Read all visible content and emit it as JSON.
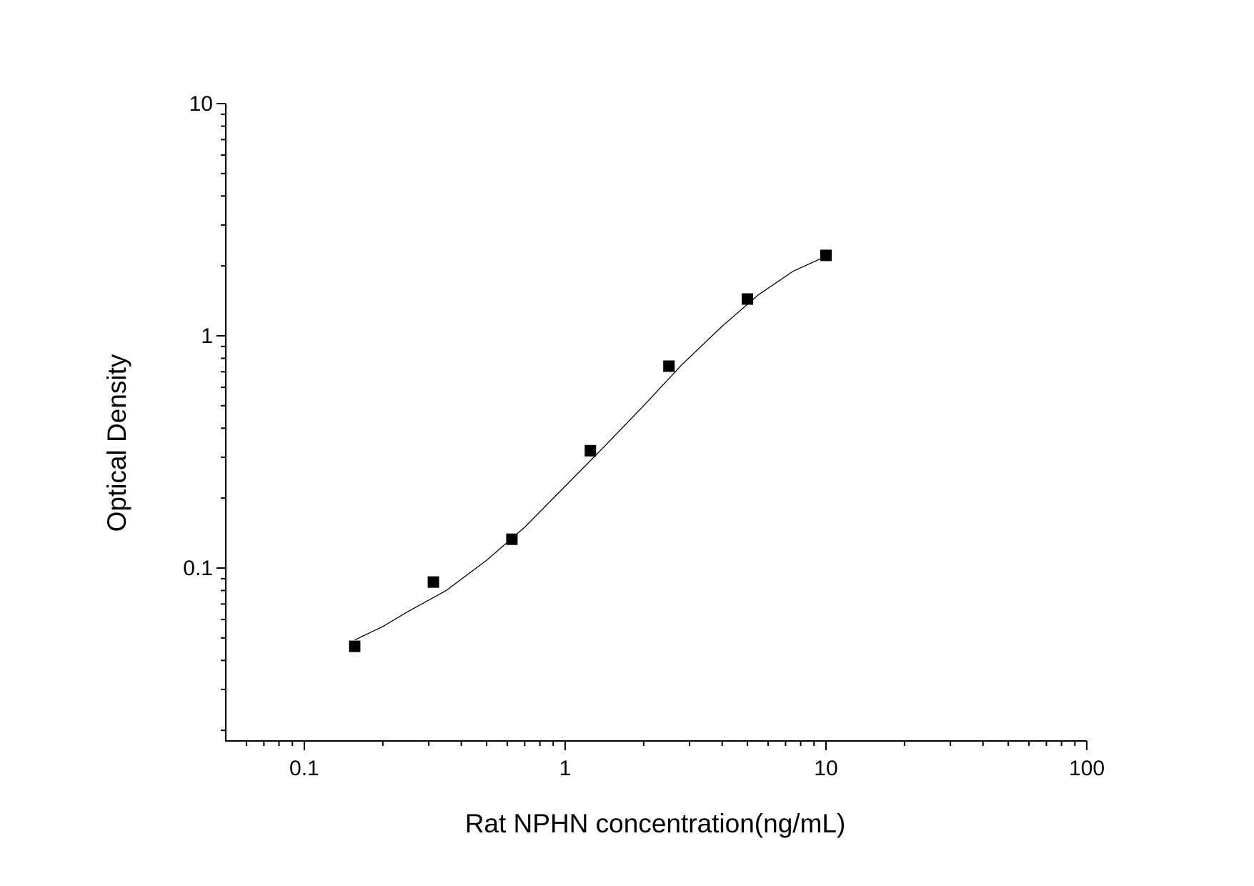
{
  "chart_data": {
    "type": "scatter",
    "xlabel": "Rat NPHN concentration(ng/mL)",
    "ylabel": "Optical Density",
    "xscale": "log",
    "yscale": "log",
    "xlim": [
      0.05,
      100
    ],
    "ylim": [
      0.018,
      10
    ],
    "xticks": [
      0.1,
      1,
      10,
      100
    ],
    "yticks": [
      0.1,
      1,
      10
    ],
    "xminorticks": [
      0.06,
      0.07,
      0.08,
      0.09,
      0.2,
      0.3,
      0.4,
      0.5,
      0.6,
      0.7,
      0.8,
      0.9,
      2,
      3,
      4,
      5,
      6,
      7,
      8,
      9,
      20,
      30,
      40,
      50,
      60,
      70,
      80,
      90
    ],
    "yminorticks": [
      0.02,
      0.03,
      0.04,
      0.05,
      0.06,
      0.07,
      0.08,
      0.09,
      0.2,
      0.3,
      0.4,
      0.5,
      0.6,
      0.7,
      0.8,
      0.9,
      2,
      3,
      4,
      5,
      6,
      7,
      8,
      9
    ],
    "series": [
      {
        "mode": "markers",
        "color": "#000000",
        "x": [
          0.156,
          0.3125,
          0.625,
          1.25,
          2.5,
          5,
          10
        ],
        "values": [
          0.046,
          0.087,
          0.133,
          0.32,
          0.74,
          1.44,
          2.22
        ]
      },
      {
        "mode": "line",
        "color": "#000000",
        "x": [
          0.156,
          0.2,
          0.25,
          0.35,
          0.5,
          0.7,
          1,
          1.4,
          2,
          2.8,
          4,
          5.5,
          7.5,
          10
        ],
        "values": [
          0.049,
          0.056,
          0.065,
          0.08,
          0.108,
          0.15,
          0.225,
          0.33,
          0.5,
          0.75,
          1.1,
          1.5,
          1.9,
          2.2
        ]
      }
    ]
  }
}
